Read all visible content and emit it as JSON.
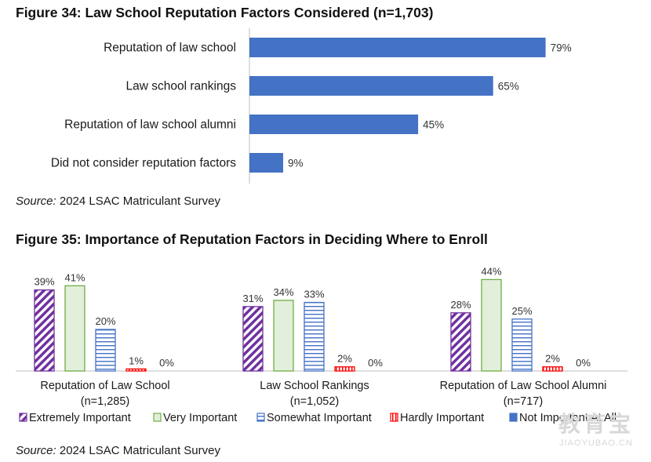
{
  "fig34": {
    "title": "Figure 34: Law School Reputation Factors Considered (n=1,703)",
    "source_label": "Source:",
    "source_text": " 2024 LSAC Matriculant Survey"
  },
  "fig35": {
    "title": "Figure 35: Importance of Reputation Factors in Deciding Where to Enroll",
    "source_label": "Source:",
    "source_text": " 2024 LSAC Matriculant Survey"
  },
  "colors": {
    "bar_blue": "#4472c4",
    "extremely": "#7030a0",
    "very": "#70ad47",
    "somewhat": "#4472c4",
    "hardly": "#ff0000",
    "not_at_all": "#4472c4"
  },
  "watermark": {
    "cn": "教育宝",
    "en": "JIAOYUBAO.CN"
  },
  "chart_data": [
    {
      "type": "bar",
      "orientation": "horizontal",
      "title": "Figure 34: Law School Reputation Factors Considered (n=1,703)",
      "categories": [
        "Reputation of law school",
        "Law school rankings",
        "Reputation of law school alumni",
        "Did not consider reputation factors"
      ],
      "values": [
        79,
        65,
        45,
        9
      ],
      "value_labels": [
        "79%",
        "65%",
        "45%",
        "9%"
      ],
      "xlim": [
        0,
        100
      ],
      "unit": "%",
      "grid": false
    },
    {
      "type": "bar",
      "orientation": "vertical",
      "title": "Figure 35: Importance of Reputation Factors in Deciding Where to Enroll",
      "groups": [
        {
          "label": "Reputation of Law School",
          "n": "(n=1,285)"
        },
        {
          "label": "Law School Rankings",
          "n": "(n=1,052)"
        },
        {
          "label": "Reputation of Law School Alumni",
          "n": "(n=717)"
        }
      ],
      "series": [
        {
          "name": "Extremely Important",
          "pattern": "diagonal",
          "values": [
            39,
            31,
            28
          ],
          "labels": [
            "39%",
            "31%",
            "28%"
          ]
        },
        {
          "name": "Very Important",
          "pattern": "solid-light",
          "values": [
            41,
            34,
            44
          ],
          "labels": [
            "41%",
            "34%",
            "44%"
          ]
        },
        {
          "name": "Somewhat Important",
          "pattern": "horizontal",
          "values": [
            20,
            33,
            25
          ],
          "labels": [
            "20%",
            "33%",
            "25%"
          ]
        },
        {
          "name": "Hardly Important",
          "pattern": "vertical",
          "values": [
            1,
            2,
            2
          ],
          "labels": [
            "1%",
            "2%",
            "2%"
          ]
        },
        {
          "name": "Not Important At All",
          "pattern": "solid",
          "values": [
            0,
            0,
            0
          ],
          "labels": [
            "0%",
            "0%",
            "0%"
          ]
        }
      ],
      "ylim": [
        0,
        50
      ],
      "legend": "bottom",
      "grid": false
    }
  ]
}
